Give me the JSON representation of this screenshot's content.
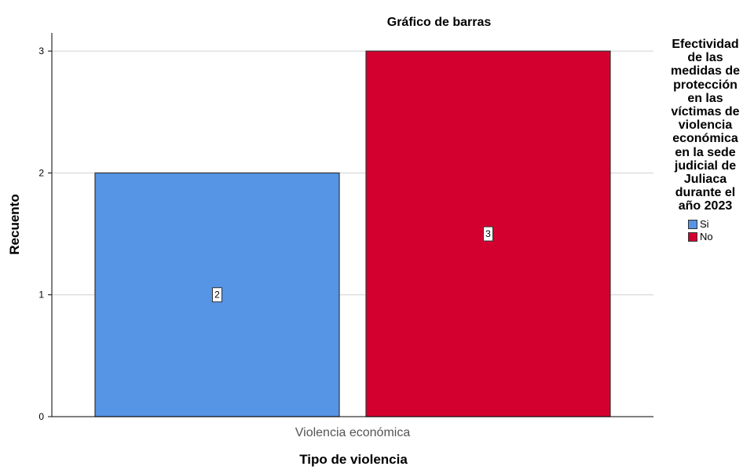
{
  "chart_data": {
    "type": "bar",
    "title": "Gráfico de barras",
    "xlabel": "Tipo de violencia",
    "ylabel": "Recuento",
    "categories": [
      "Violencia económica"
    ],
    "series": [
      {
        "name": "Si",
        "values": [
          2
        ],
        "color": "#5694e5"
      },
      {
        "name": "No",
        "values": [
          3
        ],
        "color": "#d3002f"
      }
    ],
    "ylim": [
      0,
      3.1
    ],
    "yticks": [
      0,
      1,
      2,
      3
    ],
    "grid": true,
    "data_labels": true,
    "legend": {
      "title": "Efectividad de las medidas de protección en las víctimas de violencia económica en la sede judicial de Juliaca durante el año 2023",
      "title_lines": [
        "Efectividad",
        "de las",
        "medidas de",
        "protección",
        "en las",
        "víctimas de",
        "violencia",
        "económica",
        "en la sede",
        "judicial de",
        "Juliaca",
        "durante el",
        "año 2023"
      ],
      "position": "right"
    }
  }
}
